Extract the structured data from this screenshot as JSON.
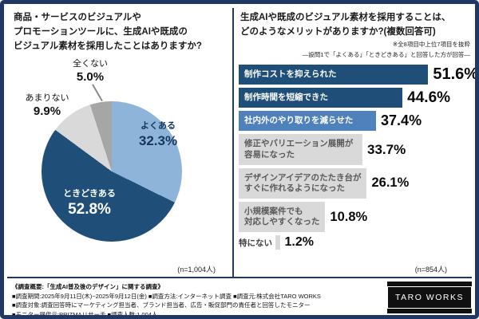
{
  "accent_colors": {
    "border_navy": "#1f3864",
    "bar_navy": "#1f4e79",
    "bar_blue": "#4f81bd",
    "pie_light_blue": "#8fb4d9",
    "gray_light": "#d9d9d9",
    "gray_mid": "#a6a6a6"
  },
  "left_panel": {
    "title": "商品・サービスのビジュアルや\nプロモーションツールに、生成AIや既成の\nビジュアル素材を採用したことはありますか?",
    "n_note": "(n=1,004人)"
  },
  "right_panel": {
    "title": "生成AIや既成のビジュアル素材を採用することは、\nどのようなメリットがありますか?(複数回答可)",
    "note_top": "※全8項目中上位7項目を抜粋",
    "note_sub": "―設問1で「よくある」「ときどきある」と回答した方が回答―",
    "n_note": "(n=854人)"
  },
  "chart_data": [
    {
      "type": "pie",
      "title": "商品・サービスのビジュアルやプロモーションツールに、生成AIや既成のビジュアル素材を採用したことはありますか?",
      "labels": [
        "よくある",
        "ときどきある",
        "あまりない",
        "全くない"
      ],
      "values": [
        32.3,
        52.8,
        9.9,
        5.0
      ],
      "unit": "%",
      "colors": [
        "#8fb4d9",
        "#1f4e79",
        "#d9d9d9",
        "#a6a6a6"
      ],
      "start_angle": "top",
      "direction": "clockwise",
      "n_note": "(n=1,004人)"
    },
    {
      "type": "bar",
      "orientation": "horizontal",
      "title": "生成AIや既成のビジュアル素材を採用することのメリット(複数回答可)",
      "categories": [
        "制作コストを抑えられた",
        "制作時間を短縮できた",
        "社内外のやり取りを減らせた",
        "修正やバリエーション展開が\n容易になった",
        "デザインアイデアのたたき台が\nすぐに作れるようになった",
        "小規模案件でも\n対応しやすくなった",
        "特にない"
      ],
      "values": [
        51.6,
        44.6,
        37.4,
        33.7,
        26.1,
        10.8,
        1.2
      ],
      "unit": "%",
      "xlim": [
        0,
        60
      ],
      "bar_colors": [
        "#1f4e79",
        "#1f4e79",
        "#4f81bd",
        "#d9d9d9",
        "#d9d9d9",
        "#d9d9d9",
        "#d9d9d9"
      ],
      "label_colors": [
        "#ffffff",
        "#ffffff",
        "#ffffff",
        "#595959",
        "#595959",
        "#595959",
        "#404040"
      ],
      "n_note": "(n=854人)"
    }
  ],
  "footer": {
    "lines": [
      "《調査概要:「生成AI普及後のデザイン」に関する調査》",
      "■調査期間:2025年9月11日(木)~2025年9月12日(金)  ■調査方法:インターネット調査  ■調査元:株式会社TARO WORKS",
      "■調査対象:調査回答時にマーケティング担当者、ブランド担当者、広告・販促部門の責任者と回答したモニター",
      "■モニター提供元:PRIZMAリサーチ  ■調査人数:1,004人"
    ]
  },
  "logo": {
    "text": "TARO WORKS"
  }
}
